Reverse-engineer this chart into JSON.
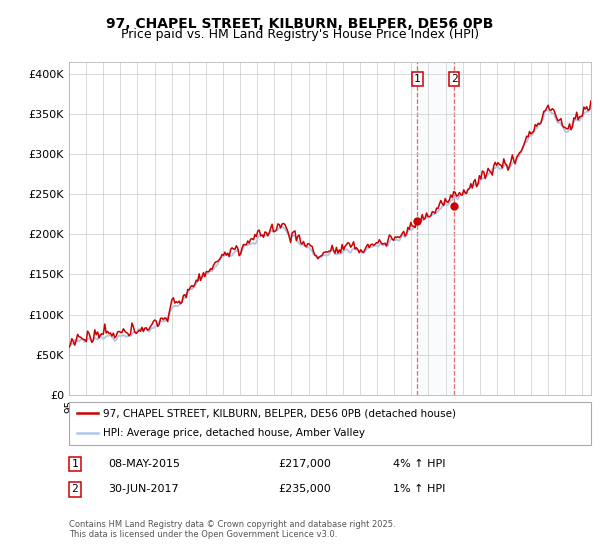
{
  "title": "97, CHAPEL STREET, KILBURN, BELPER, DE56 0PB",
  "subtitle": "Price paid vs. HM Land Registry's House Price Index (HPI)",
  "ylabel_ticks": [
    "£0",
    "£50K",
    "£100K",
    "£150K",
    "£200K",
    "£250K",
    "£300K",
    "£350K",
    "£400K"
  ],
  "ytick_values": [
    0,
    50000,
    100000,
    150000,
    200000,
    250000,
    300000,
    350000,
    400000
  ],
  "ylim": [
    0,
    415000
  ],
  "xlim_start": 1995.0,
  "xlim_end": 2025.5,
  "hpi_color": "#aec6e8",
  "price_color": "#cc0000",
  "marker1_date": 2015.35,
  "marker2_date": 2017.5,
  "marker1_price": 217000,
  "marker2_price": 235000,
  "legend_line1": "97, CHAPEL STREET, KILBURN, BELPER, DE56 0PB (detached house)",
  "legend_line2": "HPI: Average price, detached house, Amber Valley",
  "footer": "Contains HM Land Registry data © Crown copyright and database right 2025.\nThis data is licensed under the Open Government Licence v3.0.",
  "background_color": "#ffffff",
  "plot_bg_color": "#ffffff",
  "grid_color": "#cccccc",
  "title_fontsize": 10,
  "subtitle_fontsize": 9
}
